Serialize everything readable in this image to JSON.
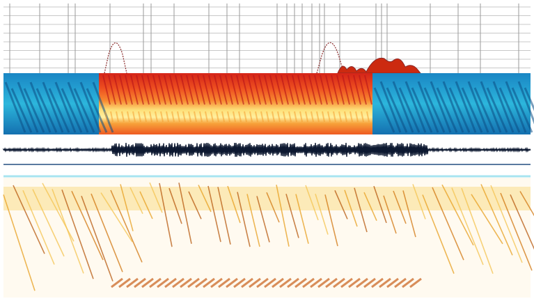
{
  "colors": {
    "background": "#ffffff",
    "grid_line": "#c8c8c8",
    "grid_line_strong": "#9a9a9a",
    "envelope_line": "#8a2a2a",
    "envelope_fill": "#cc2a10",
    "spectro_cool": [
      "#0b4f8a",
      "#1577b8",
      "#20a2d8",
      "#39c6e6",
      "#6adcf0"
    ],
    "spectro_hot": [
      "#c81e1e",
      "#e8441c",
      "#f6782a",
      "#f9a83a",
      "#fde07a",
      "#fff4b0"
    ],
    "waveform": "#0c1830",
    "divider_blue": "#5a7aa0",
    "divider_cyan": "#a8e4f0",
    "spectro_light_bg": "#fffaf0",
    "spectro_light_streak": [
      "#f5c451",
      "#e8a020",
      "#d27812",
      "#b85a10"
    ]
  },
  "panels": {
    "detector_plot": {
      "kind": "line-envelope",
      "events": 3
    },
    "activity_spectrogram": {
      "kind": "heatmap",
      "segments": [
        {
          "state": "inactive",
          "palette": "cool"
        },
        {
          "state": "active",
          "palette": "hot"
        },
        {
          "state": "inactive",
          "palette": "cool"
        }
      ]
    },
    "waveform": {
      "kind": "waveform"
    },
    "spectrogram": {
      "kind": "heatmap",
      "palette": "light"
    }
  }
}
